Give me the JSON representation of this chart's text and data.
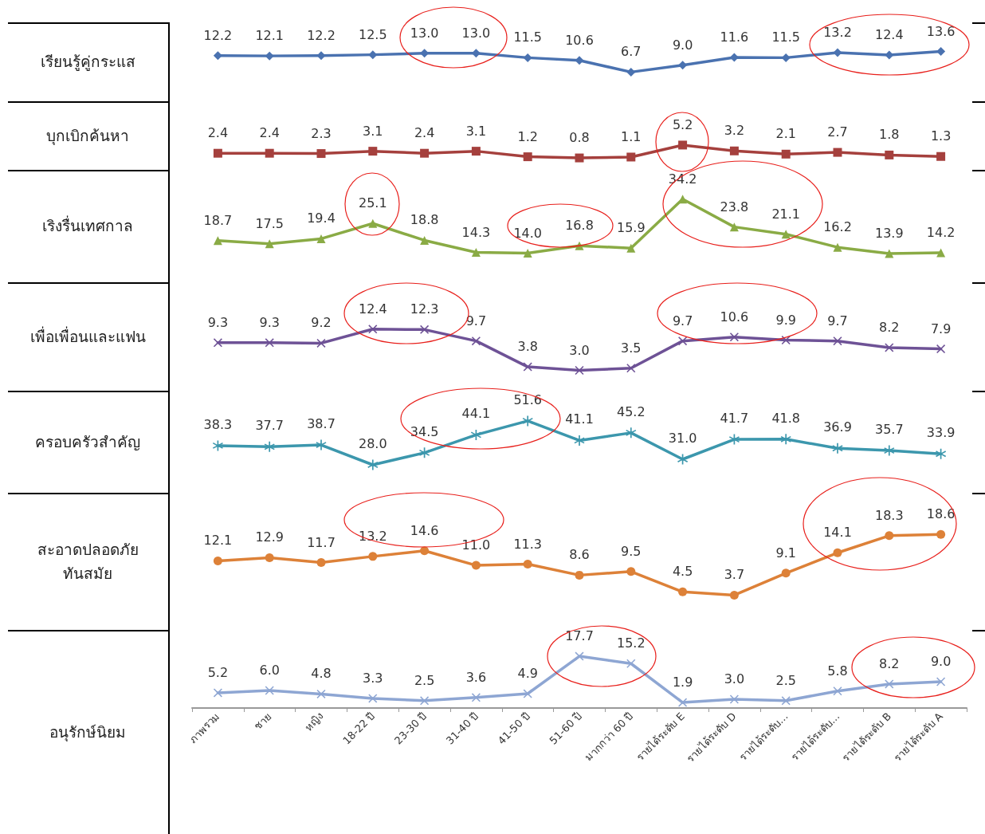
{
  "chart_data": [
    {
      "type": "line",
      "ylabel": "เรียนรู้คู่กระแส",
      "categories": [
        null,
        null,
        null,
        null,
        null,
        null,
        null,
        null,
        null,
        null,
        null,
        null,
        null,
        null,
        null
      ],
      "tick_labels": false,
      "marker": "diamond",
      "line_style": "solid",
      "series": [
        {
          "color": "#4a72b0",
          "values": [
            12.2,
            12.1,
            12.2,
            12.5,
            13.0,
            13.0,
            11.5,
            10.6,
            6.7,
            9.0,
            11.6,
            11.5,
            13.2,
            12.4,
            13.6
          ],
          "value_labels": [
            "12.2",
            "12.1",
            "12.2",
            "12.5",
            "13.0",
            "13.0",
            "11.5",
            "10.6",
            "6.7",
            "9.0",
            "11.6",
            "11.5",
            "13.2",
            "12.4",
            "13.6"
          ]
        }
      ]
    },
    {
      "type": "line",
      "ylabel": "บุกเบิกค้นหา",
      "categories": [
        null,
        null,
        null,
        null,
        null,
        null,
        null,
        null,
        null,
        null,
        null,
        null,
        null,
        null,
        null
      ],
      "tick_labels": false,
      "marker": "square",
      "line_style": "solid",
      "series": [
        {
          "color": "#a5403d",
          "values": [
            2.4,
            2.4,
            2.3,
            3.1,
            2.4,
            3.1,
            1.2,
            0.8,
            1.1,
            5.2,
            3.2,
            2.1,
            2.7,
            1.8,
            1.3
          ],
          "value_labels": [
            "2.4",
            "2.4",
            "2.3",
            "3.1",
            "2.4",
            "3.1",
            "1.2",
            "0.8",
            "1.1",
            "5.2",
            "3.2",
            "2.1",
            "2.7",
            "1.8",
            "1.3"
          ]
        }
      ]
    },
    {
      "type": "line",
      "ylabel": "เริงรื่นเทศกาล",
      "categories": [
        null,
        null,
        null,
        null,
        null,
        null,
        null,
        null,
        null,
        null,
        null,
        null,
        null,
        null,
        null
      ],
      "tick_labels": false,
      "marker": "triangle",
      "line_style": "solid",
      "series": [
        {
          "color": "#8aab45",
          "values": [
            18.7,
            17.5,
            19.4,
            25.1,
            18.8,
            14.3,
            14.0,
            16.8,
            15.9,
            34.2,
            23.8,
            21.1,
            16.2,
            13.9,
            14.2
          ],
          "value_labels": [
            "18.7",
            "17.5",
            "19.4",
            "25.1",
            "18.8",
            "14.3",
            "14.0",
            "16.8",
            "15.9",
            "34.2",
            "23.8",
            "21.1",
            "16.2",
            "13.9",
            "14.2"
          ]
        }
      ]
    },
    {
      "type": "line",
      "ylabel": "เพื่อเพื่อนและแฟน",
      "categories": [
        null,
        null,
        null,
        null,
        null,
        null,
        null,
        null,
        null,
        null,
        null,
        null,
        null,
        null,
        null
      ],
      "tick_labels": false,
      "marker": "cross",
      "line_style": "solid",
      "series": [
        {
          "color": "#6e5296",
          "values": [
            9.3,
            9.3,
            9.2,
            12.4,
            12.3,
            9.7,
            3.8,
            3.0,
            3.5,
            9.7,
            10.6,
            9.9,
            9.7,
            8.2,
            7.9
          ],
          "value_labels": [
            "9.3",
            "9.3",
            "9.2",
            "12.4",
            "12.3",
            "9.7",
            "3.8",
            "3.0",
            "3.5",
            "9.7",
            "10.6",
            "9.9",
            "9.7",
            "8.2",
            "7.9"
          ]
        }
      ]
    },
    {
      "type": "line",
      "ylabel": "ครอบครัวสำคัญ",
      "categories": [
        null,
        null,
        null,
        null,
        null,
        null,
        null,
        null,
        null,
        null,
        null,
        null,
        null,
        null,
        null
      ],
      "tick_labels": false,
      "marker": "star",
      "line_style": "solid",
      "series": [
        {
          "color": "#3c97ad",
          "values": [
            38.3,
            37.7,
            38.7,
            28.0,
            34.5,
            44.1,
            51.6,
            41.1,
            45.2,
            31.0,
            41.7,
            41.8,
            36.9,
            35.7,
            33.9
          ],
          "value_labels": [
            "38.3",
            "37.7",
            "38.7",
            "28.0",
            "34.5",
            "44.1",
            "51.6",
            "41.1",
            "45.2",
            "31.0",
            "41.7",
            "41.8",
            "36.9",
            "35.7",
            "33.9"
          ]
        }
      ]
    },
    {
      "type": "line",
      "ylabel": "สะอาดปลอดภัย\nทันสมัย",
      "categories": [
        null,
        null,
        null,
        null,
        null,
        null,
        null,
        null,
        null,
        null,
        null,
        null,
        null,
        null,
        null
      ],
      "tick_labels": false,
      "marker": "circle",
      "line_style": "solid",
      "series": [
        {
          "color": "#dd8138",
          "values": [
            12.1,
            12.9,
            11.7,
            13.2,
            14.6,
            11.0,
            11.3,
            8.6,
            9.5,
            4.5,
            3.7,
            9.1,
            14.1,
            18.3,
            18.6
          ],
          "value_labels": [
            "12.1",
            "12.9",
            "11.7",
            "13.2",
            "14.6",
            "11.0",
            "11.3",
            "8.6",
            "9.5",
            "4.5",
            "3.7",
            "9.1",
            "14.1",
            "18.3",
            "18.6"
          ]
        }
      ]
    },
    {
      "type": "line",
      "ylabel": "อนุรักษ์นิยม",
      "categories": [
        "ภาพรวม",
        "ชาย",
        "หญิง",
        "18-22 ปี",
        "23-30 ปี",
        "31-40 ปี",
        "41-50 ปี",
        "51-60 ปี",
        "มากกว่า 60 ปี",
        "รายได้ระดับ E",
        "รายได้ระดับ D",
        "รายได้ระดับ...",
        "รายได้ระดับ...",
        "รายได้ระดับ B",
        "รายได้ระดับ A"
      ],
      "tick_labels": "x",
      "marker": "cross",
      "line_style": "solid",
      "series": [
        {
          "color": "#8ea6d3",
          "values": [
            5.2,
            6.0,
            4.8,
            3.3,
            2.5,
            3.6,
            4.9,
            17.7,
            15.2,
            1.9,
            3.0,
            2.5,
            5.8,
            8.2,
            9.0
          ],
          "value_labels": [
            "5.2",
            "6.0",
            "4.8",
            "3.3",
            "2.5",
            "3.6",
            "4.9",
            "17.7",
            "15.2",
            "1.9",
            "3.0",
            "2.5",
            "5.8",
            "8.2",
            "9.0"
          ]
        }
      ]
    }
  ]
}
